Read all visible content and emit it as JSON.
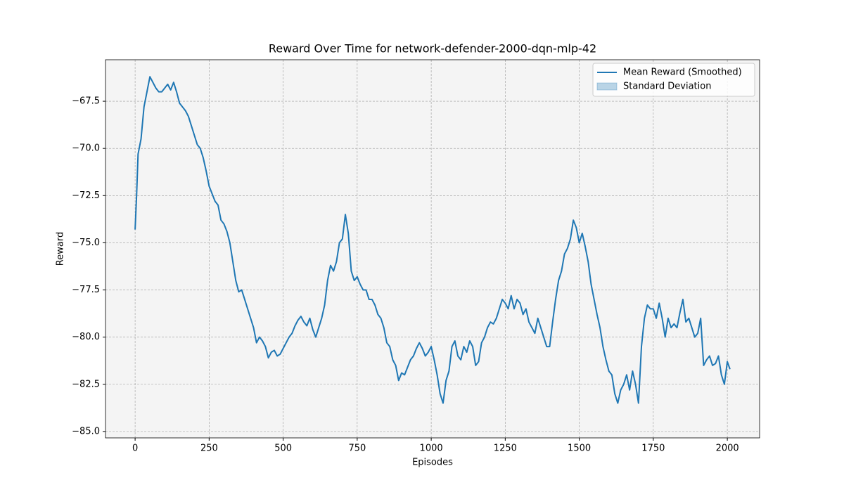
{
  "chart_data": {
    "type": "line",
    "title": "Reward Over Time for network-defender-2000-dqn-mlp-42",
    "x_label": "Episodes",
    "y_label": "Reward",
    "x": [
      0,
      5,
      10,
      20,
      30,
      40,
      50,
      60,
      70,
      80,
      90,
      100,
      110,
      120,
      130,
      140,
      150,
      160,
      170,
      180,
      190,
      200,
      210,
      220,
      230,
      240,
      250,
      260,
      270,
      280,
      290,
      300,
      310,
      320,
      330,
      340,
      350,
      360,
      370,
      380,
      390,
      400,
      410,
      420,
      430,
      440,
      450,
      460,
      470,
      480,
      490,
      500,
      510,
      520,
      530,
      540,
      550,
      560,
      570,
      580,
      590,
      600,
      610,
      620,
      630,
      640,
      650,
      660,
      670,
      680,
      690,
      700,
      710,
      720,
      730,
      740,
      750,
      760,
      770,
      780,
      790,
      800,
      810,
      820,
      830,
      840,
      850,
      860,
      870,
      880,
      890,
      900,
      910,
      920,
      930,
      940,
      950,
      960,
      970,
      980,
      990,
      1000,
      1010,
      1020,
      1030,
      1040,
      1050,
      1060,
      1070,
      1080,
      1090,
      1100,
      1110,
      1120,
      1130,
      1140,
      1150,
      1160,
      1170,
      1180,
      1190,
      1200,
      1210,
      1220,
      1230,
      1240,
      1250,
      1260,
      1270,
      1280,
      1290,
      1300,
      1310,
      1320,
      1330,
      1340,
      1350,
      1360,
      1370,
      1380,
      1390,
      1400,
      1410,
      1420,
      1430,
      1440,
      1450,
      1460,
      1470,
      1480,
      1490,
      1500,
      1510,
      1520,
      1530,
      1540,
      1550,
      1560,
      1570,
      1580,
      1590,
      1600,
      1610,
      1620,
      1630,
      1640,
      1650,
      1660,
      1670,
      1680,
      1690,
      1700,
      1710,
      1720,
      1730,
      1740,
      1750,
      1760,
      1770,
      1780,
      1790,
      1800,
      1810,
      1820,
      1830,
      1840,
      1850,
      1860,
      1870,
      1880,
      1890,
      1900,
      1910,
      1920,
      1930,
      1940,
      1950,
      1960,
      1970,
      1980,
      1990,
      2000,
      2009
    ],
    "series": [
      {
        "name": "Mean Reward (Smoothed)",
        "color": "#1f77b4",
        "values": [
          -74.3,
          -72.5,
          -70.3,
          -69.5,
          -67.8,
          -67.0,
          -66.2,
          -66.5,
          -66.8,
          -67.0,
          -67.0,
          -66.8,
          -66.6,
          -66.9,
          -66.5,
          -67.0,
          -67.6,
          -67.8,
          -68.0,
          -68.3,
          -68.8,
          -69.3,
          -69.8,
          -70.0,
          -70.5,
          -71.2,
          -72.0,
          -72.4,
          -72.8,
          -73.0,
          -73.8,
          -74.0,
          -74.4,
          -75.0,
          -76.0,
          -77.0,
          -77.6,
          -77.5,
          -78.0,
          -78.5,
          -79.0,
          -79.5,
          -80.3,
          -80.0,
          -80.2,
          -80.5,
          -81.1,
          -80.8,
          -80.7,
          -81.0,
          -80.9,
          -80.6,
          -80.3,
          -80.0,
          -79.8,
          -79.4,
          -79.1,
          -78.9,
          -79.2,
          -79.4,
          -79.0,
          -79.6,
          -80.0,
          -79.5,
          -79.0,
          -78.3,
          -77.0,
          -76.2,
          -76.5,
          -76.0,
          -75.0,
          -74.8,
          -73.5,
          -74.5,
          -76.5,
          -77.0,
          -76.8,
          -77.2,
          -77.5,
          -77.5,
          -78.0,
          -78.0,
          -78.3,
          -78.8,
          -79.0,
          -79.5,
          -80.3,
          -80.5,
          -81.2,
          -81.5,
          -82.3,
          -81.9,
          -82.0,
          -81.6,
          -81.2,
          -81.0,
          -80.6,
          -80.3,
          -80.6,
          -81.0,
          -80.8,
          -80.5,
          -81.2,
          -82.0,
          -83.0,
          -83.5,
          -82.3,
          -81.8,
          -80.5,
          -80.2,
          -81.0,
          -81.2,
          -80.5,
          -80.8,
          -80.2,
          -80.5,
          -81.5,
          -81.3,
          -80.3,
          -80.0,
          -79.5,
          -79.2,
          -79.3,
          -79.0,
          -78.5,
          -78.0,
          -78.2,
          -78.5,
          -77.8,
          -78.5,
          -78.0,
          -78.2,
          -78.8,
          -78.5,
          -79.2,
          -79.5,
          -79.8,
          -79.0,
          -79.5,
          -80.0,
          -80.5,
          -80.5,
          -79.2,
          -78.0,
          -77.0,
          -76.5,
          -75.6,
          -75.3,
          -74.8,
          -73.8,
          -74.2,
          -75.0,
          -74.5,
          -75.2,
          -76.0,
          -77.2,
          -78.0,
          -78.8,
          -79.5,
          -80.5,
          -81.2,
          -81.8,
          -82.0,
          -83.0,
          -83.5,
          -82.8,
          -82.5,
          -82.0,
          -82.8,
          -81.8,
          -82.5,
          -83.5,
          -80.5,
          -79.0,
          -78.3,
          -78.5,
          -78.5,
          -79.0,
          -78.2,
          -79.0,
          -80.0,
          -79.0,
          -79.5,
          -79.3,
          -79.5,
          -78.7,
          -78.0,
          -79.2,
          -79.0,
          -79.5,
          -80.0,
          -79.8,
          -79.0,
          -81.5,
          -81.2,
          -81.0,
          -81.5,
          -81.4,
          -81.0,
          -82.0,
          -82.5,
          -81.3,
          -81.7
        ]
      },
      {
        "name": "Standard Deviation",
        "color": "#1f77b4",
        "alpha": 0.3
      }
    ],
    "xlim": [
      -100,
      2109
    ],
    "ylim": [
      -85.34,
      -65.3
    ],
    "xticks": [
      0,
      250,
      500,
      750,
      1000,
      1250,
      1500,
      1750,
      2000
    ],
    "yticks": [
      {
        "value": -85,
        "label": "−85.0"
      },
      {
        "value": -82.5,
        "label": "−82.5"
      },
      {
        "value": -80,
        "label": "−80.0"
      },
      {
        "value": -77.5,
        "label": "−77.5"
      },
      {
        "value": -75,
        "label": "−75.0"
      },
      {
        "value": -72.5,
        "label": "−72.5"
      },
      {
        "value": -70,
        "label": "−70.0"
      },
      {
        "value": -67.5,
        "label": "−67.5"
      }
    ],
    "grid": true,
    "legend": "upper right",
    "background": "#f4f4f4"
  }
}
